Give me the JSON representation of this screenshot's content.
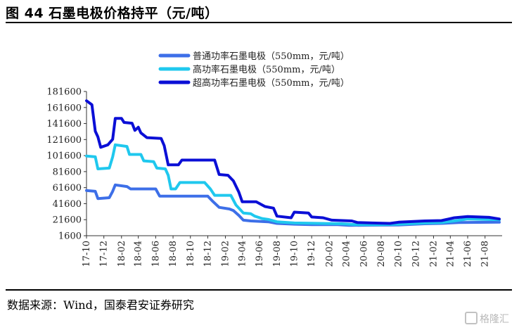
{
  "figure": {
    "title": "图 44 石墨电极价格持平（元/吨）",
    "source": "数据来源：Wind，国泰君安证券研究",
    "watermark": "格隆汇"
  },
  "chart_data": {
    "type": "line",
    "title": "",
    "xlabel": "",
    "ylabel": "",
    "ylim": [
      1600,
      181600
    ],
    "yticks": [
      1600,
      21600,
      41600,
      61600,
      81600,
      101600,
      121600,
      141600,
      161600,
      181600
    ],
    "xticks": [
      "17-10",
      "17-12",
      "18-02",
      "18-04",
      "18-06",
      "18-08",
      "18-10",
      "18-12",
      "19-02",
      "19-04",
      "19-06",
      "19-08",
      "19-10",
      "19-12",
      "20-02",
      "20-04",
      "20-06",
      "20-08",
      "20-10",
      "20-12",
      "21-02",
      "21-04",
      "21-06",
      "21-08"
    ],
    "x_start": "2017-10",
    "x_end": "2021-09",
    "legend_position": "top-center",
    "grid": false,
    "series": [
      {
        "name": "普通功率石墨电极（550mm，元/吨）",
        "color": "#3d6fe8",
        "points": [
          [
            "2017-10-01",
            58000
          ],
          [
            "2017-11-01",
            57000
          ],
          [
            "2017-11-10",
            48000
          ],
          [
            "2017-12-20",
            49000
          ],
          [
            "2018-01-01",
            57000
          ],
          [
            "2018-01-10",
            65000
          ],
          [
            "2018-02-20",
            63000
          ],
          [
            "2018-03-05",
            60000
          ],
          [
            "2018-06-01",
            60000
          ],
          [
            "2018-06-15",
            51000
          ],
          [
            "2018-12-01",
            51000
          ],
          [
            "2018-12-20",
            44000
          ],
          [
            "2019-01-10",
            37000
          ],
          [
            "2019-02-15",
            35000
          ],
          [
            "2019-03-01",
            33000
          ],
          [
            "2019-03-20",
            27000
          ],
          [
            "2019-04-05",
            21000
          ],
          [
            "2019-05-01",
            20000
          ],
          [
            "2019-07-01",
            19000
          ],
          [
            "2019-08-01",
            17000
          ],
          [
            "2019-10-01",
            16000
          ],
          [
            "2019-12-01",
            15500
          ],
          [
            "2020-03-01",
            15500
          ],
          [
            "2020-04-10",
            14500
          ],
          [
            "2020-07-01",
            14800
          ],
          [
            "2020-10-01",
            15000
          ],
          [
            "2021-01-01",
            16500
          ],
          [
            "2021-03-01",
            17000
          ],
          [
            "2021-05-01",
            18000
          ],
          [
            "2021-09-20",
            18500
          ]
        ]
      },
      {
        "name": "高功率石墨电极（550mm，元/吨）",
        "color": "#1fc8ee",
        "points": [
          [
            "2017-10-01",
            101000
          ],
          [
            "2017-11-01",
            100000
          ],
          [
            "2017-11-10",
            85000
          ],
          [
            "2017-12-20",
            86000
          ],
          [
            "2018-01-01",
            100000
          ],
          [
            "2018-01-10",
            115000
          ],
          [
            "2018-02-20",
            113000
          ],
          [
            "2018-03-01",
            103000
          ],
          [
            "2018-04-10",
            103000
          ],
          [
            "2018-04-20",
            95000
          ],
          [
            "2018-05-25",
            94000
          ],
          [
            "2018-06-05",
            86000
          ],
          [
            "2018-07-05",
            85000
          ],
          [
            "2018-07-15",
            77000
          ],
          [
            "2018-07-25",
            60000
          ],
          [
            "2018-08-10",
            60000
          ],
          [
            "2018-08-25",
            68000
          ],
          [
            "2018-11-20",
            68000
          ],
          [
            "2018-12-10",
            60000
          ],
          [
            "2018-12-25",
            52000
          ],
          [
            "2019-02-20",
            52000
          ],
          [
            "2019-03-10",
            40000
          ],
          [
            "2019-04-05",
            30000
          ],
          [
            "2019-05-01",
            29000
          ],
          [
            "2019-05-15",
            26000
          ],
          [
            "2019-06-10",
            23000
          ],
          [
            "2019-07-01",
            22000
          ],
          [
            "2019-08-01",
            19000
          ],
          [
            "2019-10-01",
            17500
          ],
          [
            "2020-01-01",
            17000
          ],
          [
            "2020-03-15",
            16500
          ],
          [
            "2020-05-01",
            15500
          ],
          [
            "2020-08-01",
            15500
          ],
          [
            "2020-10-01",
            16000
          ],
          [
            "2021-01-01",
            17500
          ],
          [
            "2021-03-01",
            18000
          ],
          [
            "2021-04-15",
            20000
          ],
          [
            "2021-06-01",
            22500
          ],
          [
            "2021-09-20",
            21500
          ]
        ]
      },
      {
        "name": "超高功率石墨电极（550mm，元/吨）",
        "color": "#0b0fd6",
        "points": [
          [
            "2017-10-01",
            170000
          ],
          [
            "2017-10-20",
            165000
          ],
          [
            "2017-11-01",
            132000
          ],
          [
            "2017-11-10",
            125000
          ],
          [
            "2017-11-20",
            112000
          ],
          [
            "2017-12-15",
            115000
          ],
          [
            "2018-01-01",
            122000
          ],
          [
            "2018-01-10",
            148000
          ],
          [
            "2018-02-01",
            148000
          ],
          [
            "2018-02-10",
            143000
          ],
          [
            "2018-03-10",
            142000
          ],
          [
            "2018-03-20",
            133000
          ],
          [
            "2018-04-01",
            137000
          ],
          [
            "2018-04-10",
            130000
          ],
          [
            "2018-05-01",
            124000
          ],
          [
            "2018-06-20",
            123000
          ],
          [
            "2018-07-01",
            114000
          ],
          [
            "2018-07-15",
            90000
          ],
          [
            "2018-08-20",
            90000
          ],
          [
            "2018-09-01",
            96000
          ],
          [
            "2018-12-25",
            96000
          ],
          [
            "2019-01-10",
            78000
          ],
          [
            "2019-02-10",
            77000
          ],
          [
            "2019-03-01",
            70000
          ],
          [
            "2019-03-20",
            56000
          ],
          [
            "2019-04-01",
            44000
          ],
          [
            "2019-05-20",
            44000
          ],
          [
            "2019-06-20",
            38000
          ],
          [
            "2019-07-20",
            36000
          ],
          [
            "2019-08-01",
            26000
          ],
          [
            "2019-09-20",
            24000
          ],
          [
            "2019-10-01",
            31000
          ],
          [
            "2019-11-20",
            30000
          ],
          [
            "2019-12-01",
            25000
          ],
          [
            "2020-01-10",
            24000
          ],
          [
            "2020-02-10",
            21000
          ],
          [
            "2020-04-20",
            20000
          ],
          [
            "2020-05-10",
            18000
          ],
          [
            "2020-07-01",
            17500
          ],
          [
            "2020-09-01",
            17000
          ],
          [
            "2020-10-01",
            18500
          ],
          [
            "2021-01-01",
            20000
          ],
          [
            "2021-03-01",
            20500
          ],
          [
            "2021-04-15",
            24000
          ],
          [
            "2021-06-01",
            25500
          ],
          [
            "2021-08-15",
            24500
          ],
          [
            "2021-09-20",
            22500
          ]
        ]
      }
    ]
  }
}
